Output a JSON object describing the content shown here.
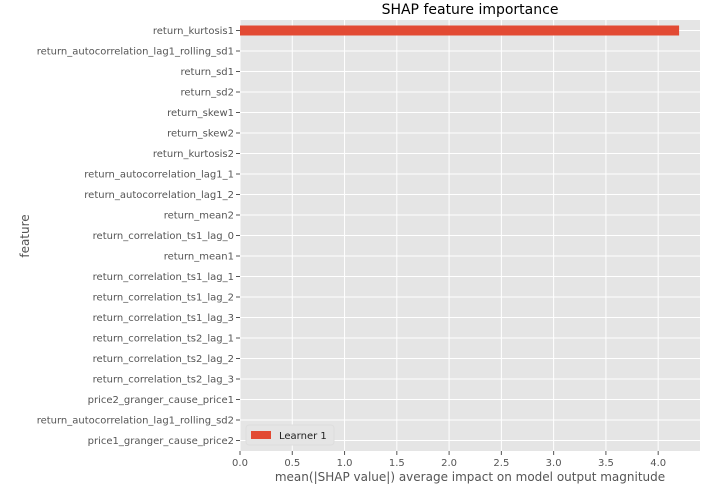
{
  "chart_data": {
    "type": "bar",
    "orientation": "horizontal",
    "title": "SHAP feature importance",
    "xlabel": "mean(|SHAP value|) average impact on model output magnitude",
    "ylabel": "feature",
    "xlim": [
      0,
      4.4
    ],
    "x_ticks": [
      "0.0",
      "0.5",
      "1.0",
      "1.5",
      "2.0",
      "2.5",
      "3.0",
      "3.5",
      "4.0"
    ],
    "grid": true,
    "legend_position": "lower-left",
    "categories": [
      "return_kurtosis1",
      "return_autocorrelation_lag1_rolling_sd1",
      "return_sd1",
      "return_sd2",
      "return_skew1",
      "return_skew2",
      "return_kurtosis2",
      "return_autocorrelation_lag1_1",
      "return_autocorrelation_lag1_2",
      "return_mean2",
      "return_correlation_ts1_lag_0",
      "return_mean1",
      "return_correlation_ts1_lag_1",
      "return_correlation_ts1_lag_2",
      "return_correlation_ts1_lag_3",
      "return_correlation_ts2_lag_1",
      "return_correlation_ts2_lag_2",
      "return_correlation_ts2_lag_3",
      "price2_granger_cause_price1",
      "return_autocorrelation_lag1_rolling_sd2",
      "price1_granger_cause_price2"
    ],
    "series": [
      {
        "name": "Learner 1",
        "color": "#e24a33",
        "values": [
          4.2,
          0,
          0,
          0,
          0,
          0,
          0,
          0,
          0,
          0,
          0,
          0,
          0,
          0,
          0,
          0,
          0,
          0,
          0,
          0,
          0
        ]
      }
    ]
  }
}
